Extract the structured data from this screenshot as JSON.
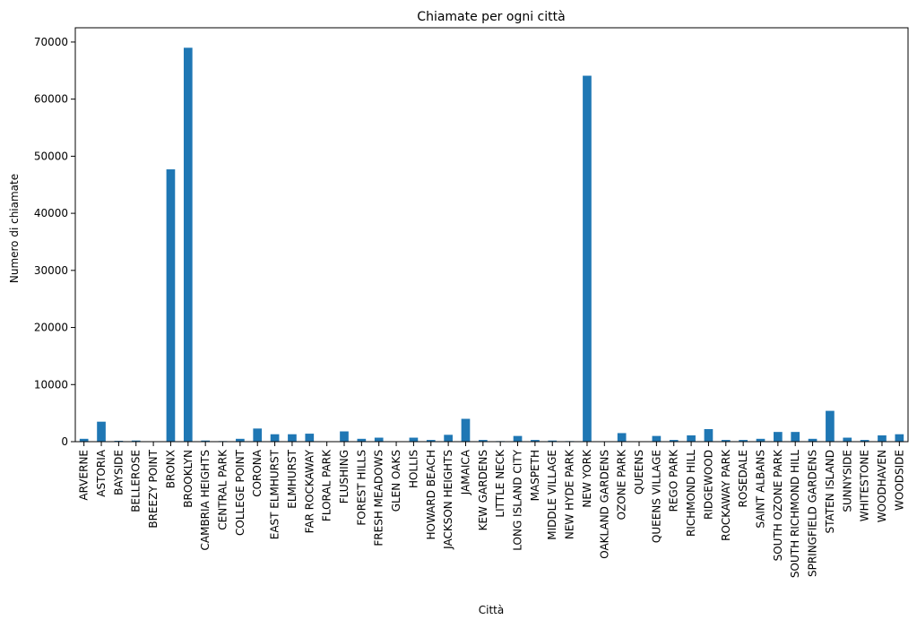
{
  "chart_data": {
    "type": "bar",
    "title": "Chiamate per ogni città",
    "xlabel": "Città",
    "ylabel": "Numero di chiamate",
    "ylim": [
      0,
      72500
    ],
    "yticks": [
      0,
      10000,
      20000,
      30000,
      40000,
      50000,
      60000,
      70000
    ],
    "grid": false,
    "legend": "none",
    "bar_color": "#1f77b4",
    "categories": [
      "ARVERNE",
      "ASTORIA",
      "BAYSIDE",
      "BELLEROSE",
      "BREEZY POINT",
      "BRONX",
      "BROOKLYN",
      "CAMBRIA HEIGHTS",
      "CENTRAL PARK",
      "COLLEGE POINT",
      "CORONA",
      "EAST ELMHURST",
      "ELMHURST",
      "FAR ROCKAWAY",
      "FLORAL PARK",
      "FLUSHING",
      "FOREST HILLS",
      "FRESH MEADOWS",
      "GLEN OAKS",
      "HOLLIS",
      "HOWARD BEACH",
      "JACKSON HEIGHTS",
      "JAMAICA",
      "KEW GARDENS",
      "LITTLE NECK",
      "LONG ISLAND CITY",
      "MASPETH",
      "MIDDLE VILLAGE",
      "NEW HYDE PARK",
      "NEW YORK",
      "OAKLAND GARDENS",
      "OZONE PARK",
      "QUEENS",
      "QUEENS VILLAGE",
      "REGO PARK",
      "RICHMOND HILL",
      "RIDGEWOOD",
      "ROCKAWAY PARK",
      "ROSEDALE",
      "SAINT ALBANS",
      "SOUTH OZONE PARK",
      "SOUTH RICHMOND HILL",
      "SPRINGFIELD GARDENS",
      "STATEN ISLAND",
      "SUNNYSIDE",
      "WHITESTONE",
      "WOODHAVEN",
      "WOODSIDE"
    ],
    "values": [
      500,
      3500,
      150,
      200,
      50,
      47700,
      69000,
      200,
      100,
      500,
      2300,
      1300,
      1300,
      1400,
      50,
      1800,
      500,
      700,
      50,
      700,
      300,
      1200,
      4000,
      300,
      100,
      1000,
      300,
      200,
      100,
      64100,
      50,
      1500,
      50,
      1000,
      300,
      1100,
      2200,
      300,
      300,
      500,
      1700,
      1700,
      500,
      5400,
      700,
      300,
      1100,
      1300
    ]
  }
}
